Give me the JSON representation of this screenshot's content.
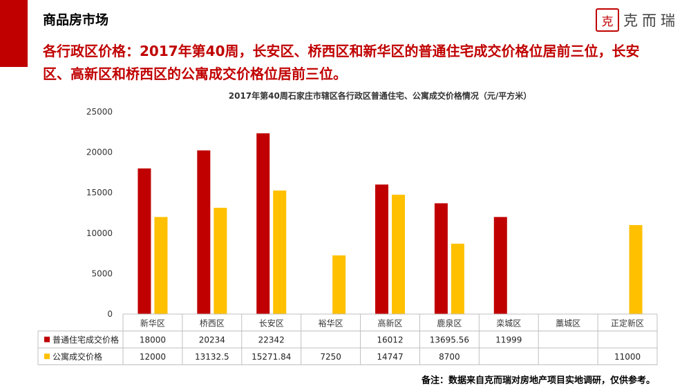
{
  "header": {
    "section_title": "商品房市场",
    "brand_seal": "克",
    "brand_name": "克而瑞"
  },
  "headline": {
    "line1": "各行政区价格：2017年第40周，长安区、桥西区和新华区的普通住宅成交价格位居前三位，长安",
    "line2": "区、高新区和桥西区的公寓成交价格位居前三位。"
  },
  "footnote": "备注：数据来自克而瑞对房地产项目实地调研，仅供参考。",
  "chart_data": {
    "type": "bar",
    "title": "2017年第40周石家庄市辖区各行政区普通住宅、公寓成交价格情况（元/平方米）",
    "categories": [
      "新华区",
      "桥西区",
      "长安区",
      "裕华区",
      "高新区",
      "鹿泉区",
      "栾城区",
      "藁城区",
      "正定新区"
    ],
    "series": [
      {
        "name": "普通住宅成交价格",
        "color": "#c00000",
        "values": [
          18000,
          20234,
          22342,
          null,
          16012,
          13695.56,
          11999,
          null,
          null
        ],
        "labels": [
          "18000",
          "20234",
          "22342",
          "",
          "16012",
          "13695.56",
          "11999",
          "",
          ""
        ]
      },
      {
        "name": "公寓成交价格",
        "color": "#ffc000",
        "values": [
          12000,
          13132.5,
          15271.84,
          7250,
          14747,
          8700,
          null,
          null,
          11000
        ],
        "labels": [
          "12000",
          "13132.5",
          "15271.84",
          "7250",
          "14747",
          "8700",
          "",
          "",
          "11000"
        ]
      }
    ],
    "ylim": [
      0,
      25000
    ],
    "yticks": [
      0,
      5000,
      10000,
      15000,
      20000,
      25000
    ],
    "ytick_labels": [
      "0",
      "5000",
      "10000",
      "15000",
      "20000",
      "25000"
    ],
    "grid": false,
    "legend": "data-table"
  }
}
